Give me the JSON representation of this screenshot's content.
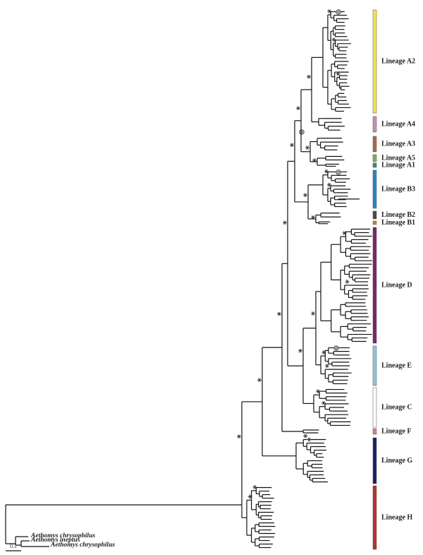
{
  "lineages": [
    {
      "label": "Lineage A2",
      "color": "#f6e24c"
    },
    {
      "label": "Lineage A4",
      "color": "#c390b9"
    },
    {
      "label": "Lineage A3",
      "color": "#b0674b"
    },
    {
      "label": "Lineage A5",
      "color": "#7cb749"
    },
    {
      "label": "Lineage A1",
      "color": "#3b8e6c"
    },
    {
      "label": "Lineage B3",
      "color": "#2a85c3"
    },
    {
      "label": "Lineage B2",
      "color": "#4a4a4a"
    },
    {
      "label": "Lineage B1",
      "color": "#d77b2c"
    },
    {
      "label": "Lineage D",
      "color": "#7c2566"
    },
    {
      "label": "Lineage E",
      "color": "#8fc3e2"
    },
    {
      "label": "Lineage C",
      "color": "#ffffff"
    },
    {
      "label": "Lineage F",
      "color": "#d8807e"
    },
    {
      "label": "Lineage G",
      "color": "#1f1f66"
    },
    {
      "label": "Lineage H",
      "color": "#b3322e"
    }
  ],
  "outgroups": [
    "Aethomys chrysophilus",
    "Aethomys ineptus",
    "Aethomys chrysophilus"
  ],
  "scale": "0.1"
}
